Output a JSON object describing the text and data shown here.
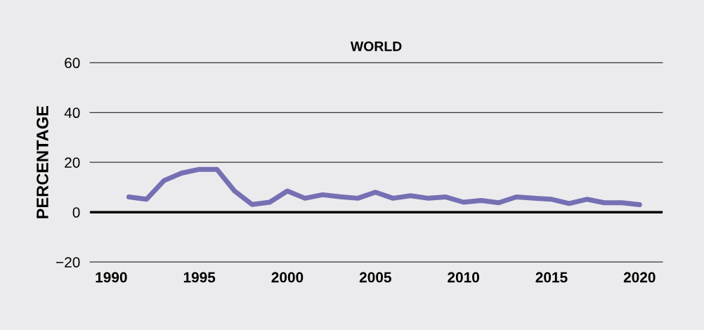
{
  "chart_data": {
    "type": "line",
    "title": "WORLD",
    "ylabel": "PERCENTAGE",
    "x": [
      1991,
      1992,
      1993,
      1994,
      1995,
      1996,
      1997,
      1998,
      1999,
      2000,
      2001,
      2002,
      2003,
      2004,
      2005,
      2006,
      2007,
      2008,
      2009,
      2010,
      2011,
      2012,
      2013,
      2014,
      2015,
      2016,
      2017,
      2018,
      2019,
      2020
    ],
    "series": [
      {
        "color": "#7570b3",
        "values": [
          6.1,
          5.2,
          12.7,
          15.7,
          17.2,
          17.2,
          8.5,
          3.1,
          4.0,
          8.5,
          5.6,
          7.0,
          6.2,
          5.6,
          8.0,
          5.6,
          6.6,
          5.6,
          6.1,
          4.0,
          4.7,
          3.8,
          6.1,
          5.6,
          5.2,
          3.5,
          5.2,
          3.8,
          3.8,
          3.0
        ]
      }
    ],
    "xlim": [
      1988.8,
      2021.3
    ],
    "xticks": [
      1990,
      1995,
      2000,
      2005,
      2010,
      2015,
      2020
    ],
    "ylim": [
      -20,
      60
    ],
    "yticks": [
      -20,
      0,
      20,
      40,
      60
    ],
    "ref_lines": [
      {
        "axis": "y",
        "value": 0,
        "color": "#000000"
      }
    ],
    "grid": "y",
    "line_style": "solid",
    "marker": "none",
    "legend": false
  }
}
